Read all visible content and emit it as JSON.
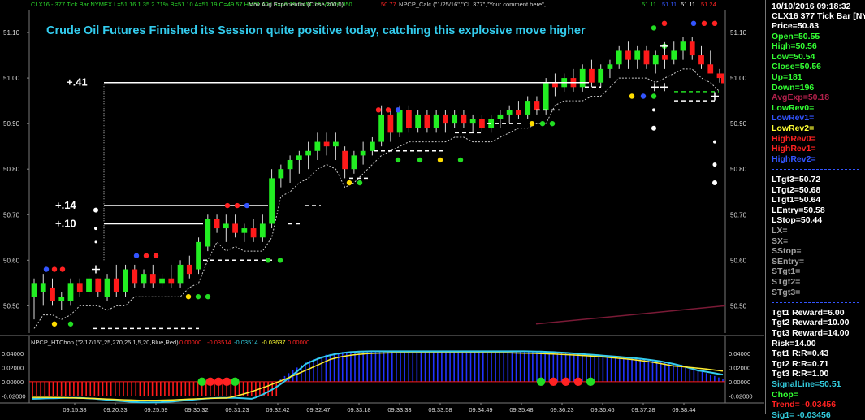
{
  "chart_data": [
    {
      "type": "candlestick",
      "title": "Crude Oil Futures Finished its Session quite positive today, catching this explosive move higher",
      "header": [
        {
          "text": "CLX16 - 377 Tick Bar  NYMEX  L=51.16  1.35  2.71%  B=51.10  A=51.19  O=49.57  Hi=51.60  Lo=49.15  C=51.16  V=626,850",
          "color": "#2bd62b"
        },
        {
          "text": "Mov Avg Exponential (Close,200,0)",
          "color": "#cfcfcf"
        },
        {
          "text": "50.77",
          "color": "#ff2222"
        },
        {
          "text": "NPCP_Calc (\"1/25/16\",\"CL 377\",\"Your comment here\",...",
          "color": "#cfcfcf"
        },
        {
          "text": "51.11",
          "color": "#2bd62b"
        },
        {
          "text": "51.11",
          "color": "#3355ff"
        },
        {
          "text": "51.11",
          "color": "#ffffff"
        },
        {
          "text": "51.24",
          "color": "#ff2222"
        }
      ],
      "y_ticks": [
        "51.10",
        "51.00",
        "50.90",
        "50.80",
        "50.70",
        "50.60",
        "50.50"
      ],
      "ylim": [
        50.44,
        51.15
      ],
      "annotations": [
        {
          "text": "+.41",
          "x": 14,
          "y": 50.99
        },
        {
          "text": "+.14",
          "x": 11,
          "y": 50.72
        },
        {
          "text": "+.10",
          "x": 11,
          "y": 50.68
        }
      ],
      "candles": [
        {
          "o": 50.52,
          "h": 50.56,
          "l": 50.47,
          "c": 50.55
        },
        {
          "o": 50.53,
          "h": 50.57,
          "l": 50.5,
          "c": 50.55
        },
        {
          "o": 50.54,
          "h": 50.56,
          "l": 50.5,
          "c": 50.51
        },
        {
          "o": 50.51,
          "h": 50.53,
          "l": 50.49,
          "c": 50.52
        },
        {
          "o": 50.51,
          "h": 50.56,
          "l": 50.5,
          "c": 50.55
        },
        {
          "o": 50.55,
          "h": 50.56,
          "l": 50.52,
          "c": 50.53
        },
        {
          "o": 50.53,
          "h": 50.57,
          "l": 50.52,
          "c": 50.56
        },
        {
          "o": 50.56,
          "h": 50.56,
          "l": 50.52,
          "c": 50.53
        },
        {
          "o": 50.52,
          "h": 50.57,
          "l": 50.51,
          "c": 50.56
        },
        {
          "o": 50.56,
          "h": 50.59,
          "l": 50.52,
          "c": 50.53
        },
        {
          "o": 50.53,
          "h": 50.59,
          "l": 50.52,
          "c": 50.58
        },
        {
          "o": 50.58,
          "h": 50.59,
          "l": 50.54,
          "c": 50.55
        },
        {
          "o": 50.55,
          "h": 50.58,
          "l": 50.54,
          "c": 50.57
        },
        {
          "o": 50.57,
          "h": 50.59,
          "l": 50.54,
          "c": 50.55
        },
        {
          "o": 50.55,
          "h": 50.57,
          "l": 50.54,
          "c": 50.56
        },
        {
          "o": 50.56,
          "h": 50.59,
          "l": 50.54,
          "c": 50.55
        },
        {
          "o": 50.55,
          "h": 50.6,
          "l": 50.54,
          "c": 50.59
        },
        {
          "o": 50.59,
          "h": 50.61,
          "l": 50.56,
          "c": 50.57
        },
        {
          "o": 50.58,
          "h": 50.65,
          "l": 50.57,
          "c": 50.64
        },
        {
          "o": 50.63,
          "h": 50.7,
          "l": 50.62,
          "c": 50.69
        },
        {
          "o": 50.69,
          "h": 50.7,
          "l": 50.66,
          "c": 50.67
        },
        {
          "o": 50.67,
          "h": 50.7,
          "l": 50.64,
          "c": 50.68
        },
        {
          "o": 50.68,
          "h": 50.7,
          "l": 50.65,
          "c": 50.66
        },
        {
          "o": 50.66,
          "h": 50.68,
          "l": 50.64,
          "c": 50.67
        },
        {
          "o": 50.67,
          "h": 50.69,
          "l": 50.64,
          "c": 50.65
        },
        {
          "o": 50.65,
          "h": 50.7,
          "l": 50.64,
          "c": 50.68
        },
        {
          "o": 50.68,
          "h": 50.8,
          "l": 50.67,
          "c": 50.78
        },
        {
          "o": 50.78,
          "h": 50.81,
          "l": 50.76,
          "c": 50.8
        },
        {
          "o": 50.8,
          "h": 50.83,
          "l": 50.77,
          "c": 50.82
        },
        {
          "o": 50.82,
          "h": 50.84,
          "l": 50.79,
          "c": 50.83
        },
        {
          "o": 50.83,
          "h": 50.86,
          "l": 50.8,
          "c": 50.84
        },
        {
          "o": 50.84,
          "h": 50.88,
          "l": 50.82,
          "c": 50.86
        },
        {
          "o": 50.86,
          "h": 50.88,
          "l": 50.83,
          "c": 50.85
        },
        {
          "o": 50.85,
          "h": 50.88,
          "l": 50.82,
          "c": 50.86
        },
        {
          "o": 50.84,
          "h": 50.85,
          "l": 50.78,
          "c": 50.8
        },
        {
          "o": 50.8,
          "h": 50.84,
          "l": 50.79,
          "c": 50.83
        },
        {
          "o": 50.83,
          "h": 50.86,
          "l": 50.81,
          "c": 50.84
        },
        {
          "o": 50.84,
          "h": 50.87,
          "l": 50.83,
          "c": 50.86
        },
        {
          "o": 50.86,
          "h": 50.94,
          "l": 50.85,
          "c": 50.92
        },
        {
          "o": 50.92,
          "h": 50.93,
          "l": 50.86,
          "c": 50.88
        },
        {
          "o": 50.88,
          "h": 50.94,
          "l": 50.87,
          "c": 50.93
        },
        {
          "o": 50.93,
          "h": 50.94,
          "l": 50.88,
          "c": 50.89
        },
        {
          "o": 50.89,
          "h": 50.93,
          "l": 50.88,
          "c": 50.92
        },
        {
          "o": 50.92,
          "h": 50.93,
          "l": 50.88,
          "c": 50.89
        },
        {
          "o": 50.89,
          "h": 50.93,
          "l": 50.88,
          "c": 50.92
        },
        {
          "o": 50.92,
          "h": 50.93,
          "l": 50.88,
          "c": 50.9
        },
        {
          "o": 50.9,
          "h": 50.93,
          "l": 50.89,
          "c": 50.92
        },
        {
          "o": 50.92,
          "h": 50.93,
          "l": 50.89,
          "c": 50.9
        },
        {
          "o": 50.9,
          "h": 50.92,
          "l": 50.88,
          "c": 50.91
        },
        {
          "o": 50.91,
          "h": 50.92,
          "l": 50.88,
          "c": 50.89
        },
        {
          "o": 50.89,
          "h": 50.92,
          "l": 50.88,
          "c": 50.91
        },
        {
          "o": 50.91,
          "h": 50.93,
          "l": 50.89,
          "c": 50.92
        },
        {
          "o": 50.92,
          "h": 50.94,
          "l": 50.9,
          "c": 50.93
        },
        {
          "o": 50.93,
          "h": 50.95,
          "l": 50.91,
          "c": 50.92
        },
        {
          "o": 50.92,
          "h": 50.96,
          "l": 50.91,
          "c": 50.95
        },
        {
          "o": 50.95,
          "h": 50.96,
          "l": 50.92,
          "c": 50.93
        },
        {
          "o": 50.93,
          "h": 51.0,
          "l": 50.92,
          "c": 50.99
        },
        {
          "o": 50.99,
          "h": 51.01,
          "l": 50.96,
          "c": 50.98
        },
        {
          "o": 50.98,
          "h": 51.01,
          "l": 50.97,
          "c": 51.0
        },
        {
          "o": 51.0,
          "h": 51.02,
          "l": 50.97,
          "c": 50.98
        },
        {
          "o": 50.98,
          "h": 51.03,
          "l": 50.97,
          "c": 51.02
        },
        {
          "o": 51.02,
          "h": 51.04,
          "l": 50.98,
          "c": 50.99
        },
        {
          "o": 50.99,
          "h": 51.03,
          "l": 50.98,
          "c": 51.02
        },
        {
          "o": 51.02,
          "h": 51.04,
          "l": 51.0,
          "c": 51.03
        },
        {
          "o": 51.03,
          "h": 51.07,
          "l": 51.02,
          "c": 51.06
        },
        {
          "o": 51.06,
          "h": 51.08,
          "l": 51.02,
          "c": 51.04
        },
        {
          "o": 51.04,
          "h": 51.07,
          "l": 51.02,
          "c": 51.06
        },
        {
          "o": 51.06,
          "h": 51.07,
          "l": 51.02,
          "c": 51.03
        },
        {
          "o": 51.03,
          "h": 51.06,
          "l": 51.01,
          "c": 51.05
        },
        {
          "o": 51.05,
          "h": 51.07,
          "l": 51.02,
          "c": 51.04
        },
        {
          "o": 51.04,
          "h": 51.08,
          "l": 51.03,
          "c": 51.06
        },
        {
          "o": 51.06,
          "h": 51.09,
          "l": 51.04,
          "c": 51.08
        },
        {
          "o": 51.08,
          "h": 51.09,
          "l": 51.04,
          "c": 51.05
        },
        {
          "o": 51.05,
          "h": 51.07,
          "l": 51.02,
          "c": 51.03
        },
        {
          "o": 51.03,
          "h": 51.06,
          "l": 51.01,
          "c": 51.01
        },
        {
          "o": 51.01,
          "h": 51.02,
          "l": 50.99,
          "c": 51.0
        }
      ],
      "ema_line": {
        "color": "#7a1a36",
        "from": 50.46,
        "to": 50.5
      }
    },
    {
      "type": "oscillator",
      "title": "NPCP_HTChop (\"2/17/15\",25,270,25,1,5,20,Blue,Red)",
      "values_text": [
        {
          "text": "0.00000",
          "color": "#ff2222"
        },
        {
          "text": "-0.03514",
          "color": "#ff2222"
        },
        {
          "text": "-0.03514",
          "color": "#33ccdd"
        },
        {
          "text": "-0.03637",
          "color": "#ffff33"
        },
        {
          "text": "0.00000",
          "color": "#ff2222"
        }
      ],
      "y_ticks": [
        "0.04000",
        "0.02000",
        "0.00000",
        "-0.02000"
      ],
      "right_ticks": [
        "0.04000",
        "0.02000",
        "0.00000",
        "-0.02000"
      ],
      "ylim": [
        -0.03,
        0.048
      ],
      "x_ticks": [
        "09:15:38",
        "09:20:33",
        "09:25:59",
        "09:30:32",
        "09:31:23",
        "09:32:42",
        "09:32:47",
        "09:33:18",
        "09:33:33",
        "09:33:58",
        "09:34:49",
        "09:35:48",
        "09:36:23",
        "09:36:46",
        "09:37:28",
        "09:38:44"
      ],
      "histogram": [
        -0.02,
        -0.02,
        -0.02,
        -0.02,
        -0.02,
        -0.02,
        -0.02,
        -0.02,
        -0.02,
        -0.02,
        -0.02,
        -0.02,
        -0.02,
        -0.02,
        -0.02,
        -0.02,
        -0.02,
        -0.02,
        -0.02,
        -0.02,
        -0.02,
        -0.02,
        -0.02,
        -0.02,
        -0.02,
        -0.02,
        -0.02,
        -0.02,
        -0.02,
        -0.02,
        -0.02,
        -0.02,
        -0.02,
        -0.02,
        -0.02,
        -0.02,
        -0.02,
        -0.02,
        -0.02,
        -0.02,
        -0.02,
        -0.02,
        -0.02,
        -0.02,
        -0.02,
        -0.02,
        -0.02,
        -0.02,
        -0.02,
        -0.02,
        -0.02,
        -0.02,
        -0.02,
        -0.02,
        -0.02,
        -0.02,
        -0.02,
        -0.02,
        -0.02,
        -0.02,
        0.004,
        0.008,
        0.012,
        0.016,
        0.02,
        0.024,
        0.027,
        0.03,
        0.032,
        0.034,
        0.036,
        0.038,
        0.039,
        0.04,
        0.041,
        0.042,
        0.042,
        0.043,
        0.043,
        0.043,
        0.043,
        0.043,
        0.043,
        0.043,
        0.043,
        0.043,
        0.043,
        0.043,
        0.043,
        0.043,
        0.043,
        0.043,
        0.043,
        0.043,
        0.043,
        0.043,
        0.043,
        0.043,
        0.043,
        0.043,
        0.043,
        0.043,
        0.043,
        0.043,
        0.043,
        0.043,
        0.043,
        0.043,
        0.043,
        0.043,
        0.043,
        0.043,
        0.043,
        0.043,
        0.043,
        0.043,
        0.043,
        0.043,
        0.043,
        0.043,
        0.043,
        0.043,
        0.043,
        0.043,
        0.043,
        0.042,
        0.042,
        0.042,
        0.041,
        0.041,
        0.04,
        0.04,
        0.04,
        0.039,
        0.039,
        0.038,
        0.038,
        0.037,
        0.037,
        0.036,
        0.036,
        0.036,
        0.035,
        0.035,
        0.034,
        0.034,
        0.033,
        0.033,
        0.032,
        0.032,
        0.031,
        0.03,
        0.029,
        0.028,
        0.027,
        0.026,
        0.025,
        0.024,
        0.022,
        0.02,
        0.018,
        0.016,
        0.014,
        0.012,
        0.01,
        0.008,
        0.006,
        0.004
      ],
      "dots": [
        {
          "index": 41,
          "color": "#22dd22"
        },
        {
          "index": 43,
          "color": "#ff2222"
        },
        {
          "index": 45,
          "color": "#ff2222"
        },
        {
          "index": 47,
          "color": "#ff2222"
        },
        {
          "index": 49,
          "color": "#22dd22"
        },
        {
          "index": 123,
          "color": "#22dd22"
        },
        {
          "index": 126,
          "color": "#ff2222"
        },
        {
          "index": 129,
          "color": "#ff2222"
        },
        {
          "index": 132,
          "color": "#ff2222"
        },
        {
          "index": 135,
          "color": "#22dd22"
        }
      ]
    }
  ],
  "panel": {
    "timestamp": "10/10/2016 09:18:32",
    "symbol": "CLX16 377 Tick Bar [NY",
    "rows": [
      {
        "text": "Price=50.83",
        "color": "#ffffff"
      },
      {
        "text": "Open=50.55",
        "color": "#33ff33"
      },
      {
        "text": "High=50.56",
        "color": "#33ff33"
      },
      {
        "text": "Low=50.54",
        "color": "#33ff33"
      },
      {
        "text": "Close=50.56",
        "color": "#33ff33"
      },
      {
        "text": "Up=181",
        "color": "#33ff33"
      },
      {
        "text": "Down=196",
        "color": "#33ff33"
      },
      {
        "text": "AvgExp=50.18",
        "color": "#b0204a"
      },
      {
        "text": "LowRev0=",
        "color": "#33ff33"
      },
      {
        "text": "LowRev1=",
        "color": "#3355ff"
      },
      {
        "text": "LowRev2=",
        "color": "#ffff33"
      },
      {
        "text": "HighRev0=",
        "color": "#ff2222"
      },
      {
        "text": "HighRev1=",
        "color": "#ff2222"
      },
      {
        "text": "HighRev2=",
        "color": "#3355ff"
      },
      {
        "text": "",
        "color": "#3355ff",
        "sep": true
      },
      {
        "text": "LTgt3=50.72",
        "color": "#ffffff"
      },
      {
        "text": "LTgt2=50.68",
        "color": "#ffffff"
      },
      {
        "text": "LTgt1=50.64",
        "color": "#ffffff"
      },
      {
        "text": "LEntry=50.58",
        "color": "#ffffff"
      },
      {
        "text": "LStop=50.44",
        "color": "#ffffff"
      },
      {
        "text": "LX=",
        "color": "#a0a0a0"
      },
      {
        "text": "SX=",
        "color": "#a0a0a0"
      },
      {
        "text": "SStop=",
        "color": "#a0a0a0"
      },
      {
        "text": "SEntry=",
        "color": "#a0a0a0"
      },
      {
        "text": "STgt1=",
        "color": "#a0a0a0"
      },
      {
        "text": "STgt2=",
        "color": "#a0a0a0"
      },
      {
        "text": "STgt3=",
        "color": "#a0a0a0"
      },
      {
        "text": "",
        "color": "#3355ff",
        "sep": true
      },
      {
        "text": "Tgt1 Reward=6.00",
        "color": "#ffffff"
      },
      {
        "text": "Tgt2 Reward=10.00",
        "color": "#ffffff"
      },
      {
        "text": "Tgt3 Reward=14.00",
        "color": "#ffffff"
      },
      {
        "text": "Risk=14.00",
        "color": "#ffffff"
      },
      {
        "text": "Tgt1 R:R=0.43",
        "color": "#ffffff"
      },
      {
        "text": "Tgt2 R:R=0.71",
        "color": "#ffffff"
      },
      {
        "text": "Tgt3 R:R=1.00",
        "color": "#ffffff"
      },
      {
        "text": "SignalLine=50.51",
        "color": "#33ccdd"
      },
      {
        "text": "Chop=",
        "color": "#33ff33"
      },
      {
        "text": "Trend= -0.03456",
        "color": "#ff2222"
      },
      {
        "text": "Sig1= -0.03456",
        "color": "#33ccdd"
      }
    ]
  }
}
